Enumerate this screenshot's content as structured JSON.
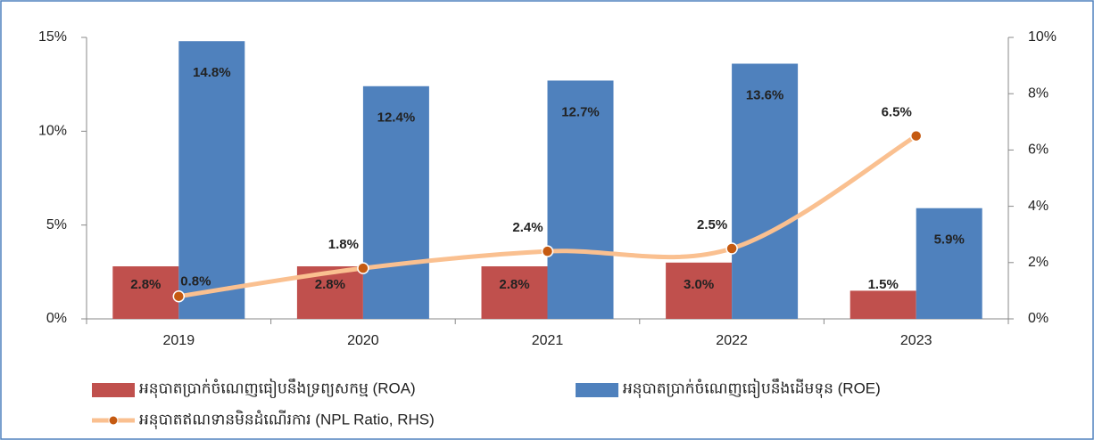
{
  "chart_data": {
    "type": "bar",
    "categories": [
      "2019",
      "2020",
      "2021",
      "2022",
      "2023"
    ],
    "series": [
      {
        "name": "អនុបាតប្រាក់ចំណេញធៀបនឹងទ្រព្យសកម្ម (ROA)",
        "color": "#c0504d",
        "values": [
          2.8,
          2.8,
          2.8,
          3.0,
          1.5
        ],
        "value_labels": [
          "2.8%",
          "2.8%",
          "2.8%",
          "3.0%",
          "1.5%"
        ]
      },
      {
        "name": "អនុបាតប្រាក់ចំណេញធៀបនឹងដើមទុន (ROE)",
        "color": "#4f81bd",
        "values": [
          14.8,
          12.4,
          12.7,
          13.6,
          5.9
        ],
        "value_labels": [
          "14.8%",
          "12.4%",
          "12.7%",
          "13.6%",
          "5.9%"
        ]
      },
      {
        "name": "អនុបាតឥណទានមិនដំណើរការ (NPL Ratio, RHS)",
        "type": "line",
        "axis": "y2",
        "color": "#fac090",
        "marker_color": "#c55a11",
        "values": [
          0.8,
          1.8,
          2.4,
          2.5,
          6.5
        ],
        "value_labels": [
          "0.8%",
          "1.8%",
          "2.4%",
          "2.5%",
          "6.5%"
        ]
      }
    ],
    "ylim": [
      0,
      15
    ],
    "yticks": [
      {
        "value": 0,
        "label": "0%"
      },
      {
        "value": 5,
        "label": "5%"
      },
      {
        "value": 10,
        "label": "10%"
      },
      {
        "value": 15,
        "label": "15%"
      }
    ],
    "y2lim": [
      0,
      10
    ],
    "y2ticks": [
      {
        "value": 0,
        "label": "0%"
      },
      {
        "value": 2,
        "label": "2%"
      },
      {
        "value": 4,
        "label": "4%"
      },
      {
        "value": 6,
        "label": "6%"
      },
      {
        "value": 8,
        "label": "8%"
      },
      {
        "value": 10,
        "label": "10%"
      }
    ],
    "legend": "bottom"
  }
}
